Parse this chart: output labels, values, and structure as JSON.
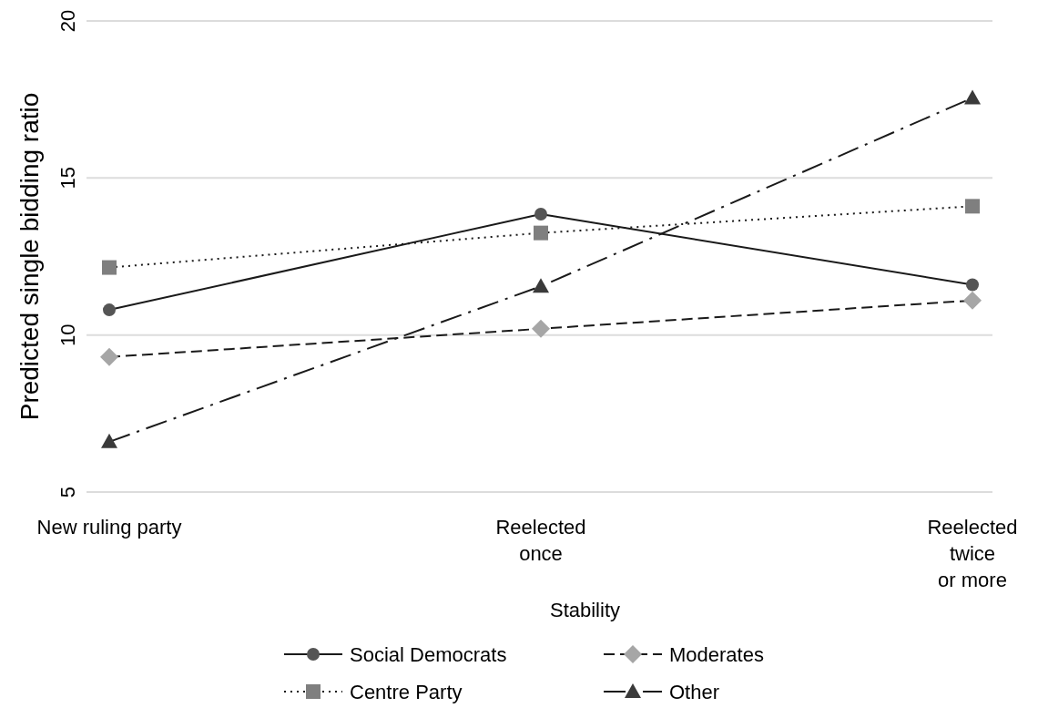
{
  "chart_data": {
    "type": "line",
    "xlabel": "Stability",
    "ylabel": "Predicted single bidding ratio",
    "categories": [
      "New ruling party",
      "Reelected\nonce",
      "Reelected\ntwice\nor more"
    ],
    "ylim": [
      5,
      20
    ],
    "yticks": [
      5,
      10,
      15,
      20
    ],
    "grid": "y",
    "legend": "bottom",
    "series": [
      {
        "name": "Social Democrats",
        "color": "#555555",
        "marker": "circle",
        "line_style": "solid",
        "values": [
          10.8,
          13.85,
          11.6
        ]
      },
      {
        "name": "Centre Party",
        "color": "#7f7f7f",
        "marker": "square",
        "line_style": "dotted",
        "values": [
          12.15,
          13.25,
          14.1
        ]
      },
      {
        "name": "Moderates",
        "color": "#a6a6a6",
        "marker": "diamond",
        "line_style": "dashed",
        "values": [
          9.3,
          10.2,
          11.1
        ]
      },
      {
        "name": "Other",
        "color": "#3a3a3a",
        "marker": "triangle",
        "line_style": "dashdot",
        "values": [
          6.6,
          11.55,
          17.55
        ]
      }
    ]
  }
}
